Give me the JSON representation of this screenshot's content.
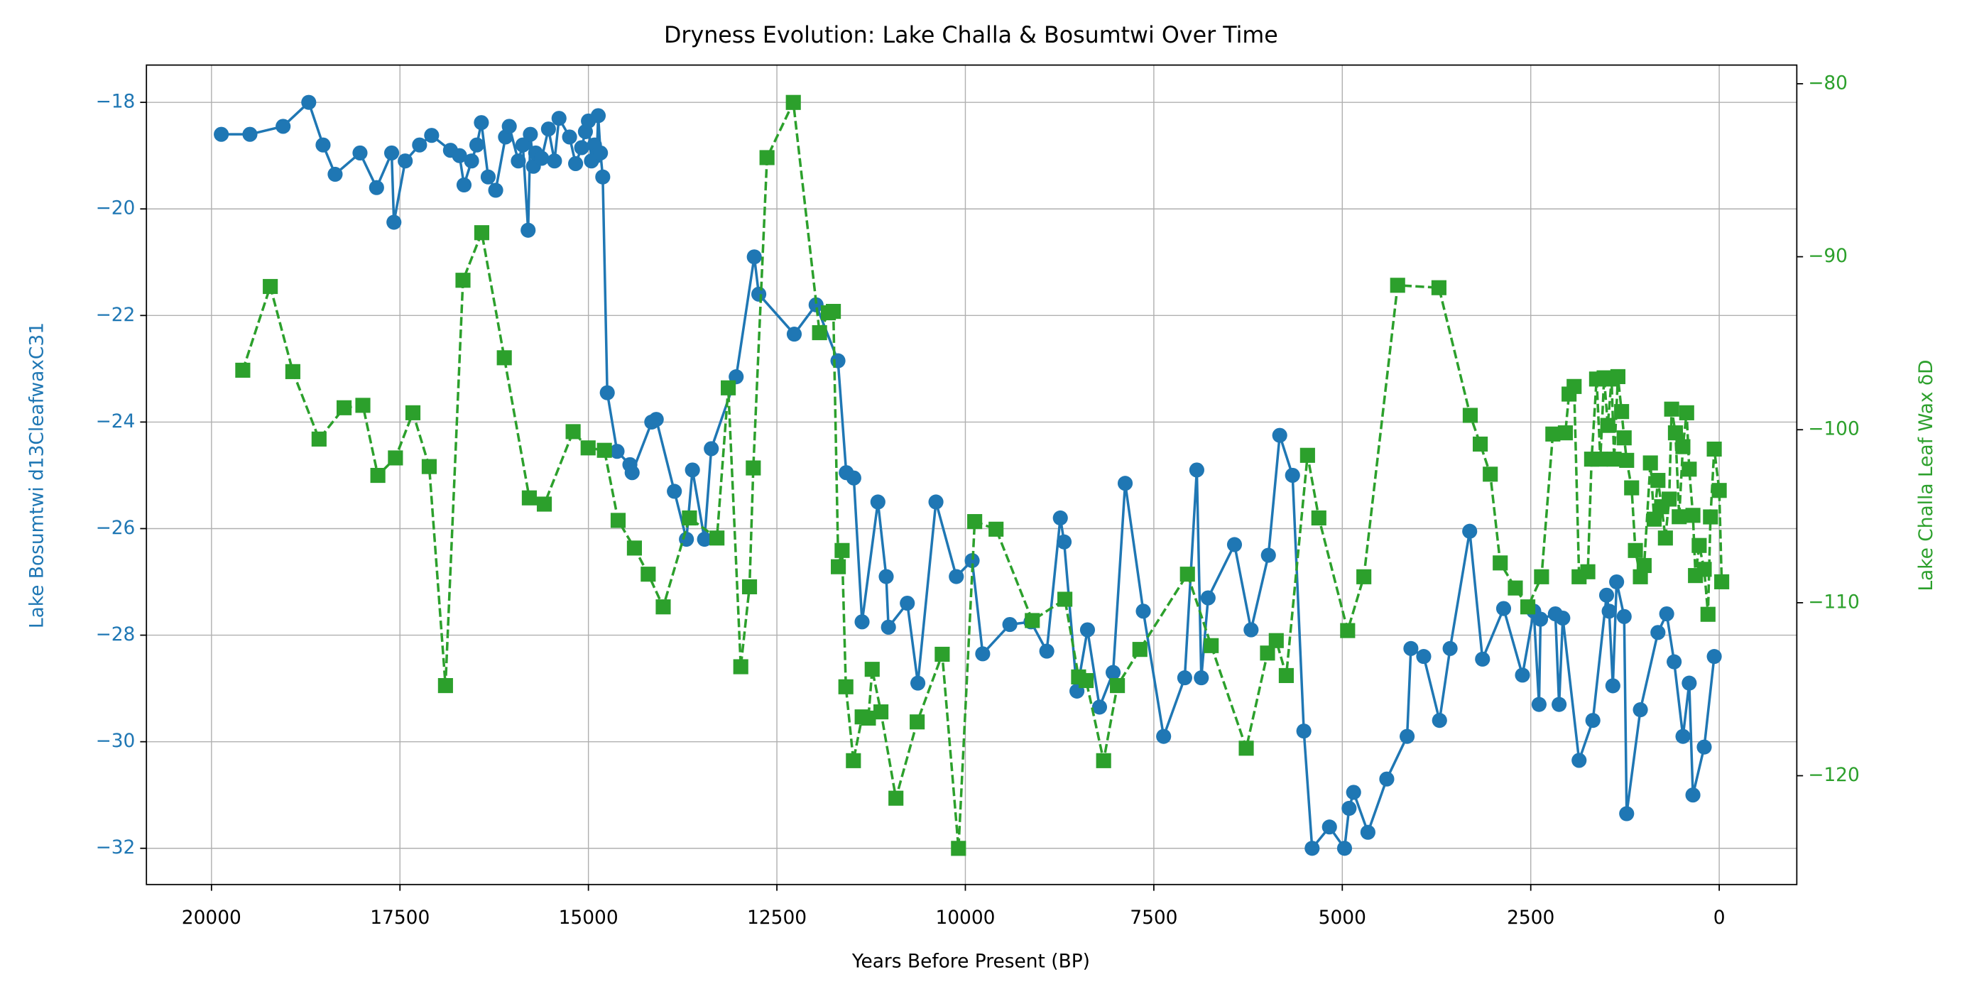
{
  "chart_data": {
    "type": "line",
    "title": "Dryness Evolution: Lake Challa & Bosumtwi Over Time",
    "xlabel": "Years Before Present (BP)",
    "ylabel": "Lake Bosumtwi d13CleafwaxC31",
    "y2label": "Lake Challa Leaf Wax δD",
    "xlim": [
      20863,
      -1029
    ],
    "xticks": [
      20000,
      17500,
      15000,
      12500,
      10000,
      7500,
      5000,
      2500,
      0
    ],
    "ylim": [
      -32.68,
      -17.3
    ],
    "yticks": [
      {
        "value": -18,
        "label": "−18"
      },
      {
        "value": -20,
        "label": "−20"
      },
      {
        "value": -22,
        "label": "−22"
      },
      {
        "value": -24,
        "label": "−24"
      },
      {
        "value": -26,
        "label": "−26"
      },
      {
        "value": -28,
        "label": "−28"
      },
      {
        "value": -30,
        "label": "−30"
      },
      {
        "value": -32,
        "label": "−32"
      }
    ],
    "y2lim": [
      -126.29,
      -78.92
    ],
    "y2ticks": [
      {
        "value": -80,
        "label": "−80"
      },
      {
        "value": -90,
        "label": "−90"
      },
      {
        "value": -100,
        "label": "−100"
      },
      {
        "value": -110,
        "label": "−110"
      },
      {
        "value": -120,
        "label": "−120"
      }
    ],
    "grid": true,
    "series": [
      {
        "color": "#1f77b4",
        "marker": "circle",
        "linestyle": "solid",
        "axis": "y",
        "x": [
          19870,
          19490,
          19050,
          18710,
          18520,
          18360,
          18030,
          17810,
          17610,
          17580,
          17430,
          17240,
          17080,
          16830,
          16710,
          16650,
          16550,
          16480,
          16420,
          16330,
          16230,
          16100,
          16050,
          15930,
          15870,
          15800,
          15770,
          15730,
          15700,
          15620,
          15530,
          15450,
          15390,
          15250,
          15170,
          15090,
          15040,
          15000,
          14960,
          14920,
          14890,
          14870,
          14840,
          14810,
          14750,
          14620,
          14450,
          14420,
          14160,
          14100,
          13860,
          13700,
          13620,
          13460,
          13370,
          13040,
          12800,
          12740,
          12270,
          11980,
          11690,
          11580,
          11480,
          11370,
          11160,
          11050,
          11020,
          10770,
          10630,
          10390,
          10120,
          9910,
          9770,
          9410,
          9130,
          8920,
          8740,
          8690,
          8520,
          8380,
          8220,
          8040,
          7880,
          7640,
          7370,
          7090,
          6930,
          6870,
          6780,
          6430,
          6210,
          5980,
          5830,
          5660,
          5510,
          5400,
          5170,
          4970,
          4910,
          4850,
          4660,
          4410,
          4140,
          4090,
          3920,
          3710,
          3570,
          3310,
          3140,
          2860,
          2610,
          2460,
          2390,
          2370,
          2174,
          2124,
          2075,
          1859,
          1676,
          1494,
          1460,
          1411,
          1361,
          1261,
          1228,
          1046,
          813,
          697,
          598,
          481,
          398,
          349,
          199,
          66
        ],
        "values": [
          -18.6,
          -18.6,
          -18.45,
          -18.0,
          -18.8,
          -19.35,
          -18.95,
          -19.6,
          -18.95,
          -20.25,
          -19.1,
          -18.8,
          -18.62,
          -18.9,
          -19.0,
          -19.55,
          -19.1,
          -18.8,
          -18.38,
          -19.4,
          -19.65,
          -18.65,
          -18.45,
          -19.1,
          -18.8,
          -20.4,
          -18.6,
          -19.2,
          -18.95,
          -19.05,
          -18.5,
          -19.1,
          -18.3,
          -18.65,
          -19.15,
          -18.85,
          -18.55,
          -18.35,
          -19.1,
          -18.8,
          -19.0,
          -18.25,
          -18.95,
          -19.4,
          -23.45,
          -24.55,
          -24.8,
          -24.95,
          -24.0,
          -23.95,
          -25.3,
          -26.2,
          -24.9,
          -26.2,
          -24.5,
          -23.15,
          -20.9,
          -21.6,
          -22.35,
          -21.8,
          -22.85,
          -24.95,
          -25.05,
          -27.75,
          -25.5,
          -26.9,
          -27.85,
          -27.4,
          -28.9,
          -25.5,
          -26.9,
          -26.6,
          -28.35,
          -27.8,
          -27.75,
          -28.3,
          -25.8,
          -26.25,
          -29.05,
          -27.9,
          -29.35,
          -28.7,
          -25.15,
          -27.55,
          -29.9,
          -28.8,
          -24.9,
          -28.8,
          -27.3,
          -26.3,
          -27.9,
          -26.5,
          -24.25,
          -25.0,
          -29.8,
          -32.0,
          -31.6,
          -32.0,
          -31.25,
          -30.95,
          -31.7,
          -30.7,
          -29.9,
          -28.25,
          -28.4,
          -29.6,
          -28.25,
          -26.05,
          -28.45,
          -27.5,
          -28.75,
          -27.55,
          -29.3,
          -27.7,
          -27.6,
          -29.3,
          -27.68,
          -30.35,
          -29.6,
          -27.25,
          -27.55,
          -28.95,
          -27.0,
          -27.65,
          -31.35,
          -29.4,
          -27.95,
          -27.6,
          -28.5,
          -29.9,
          -28.9,
          -31.0,
          -30.1,
          -28.4
        ]
      },
      {
        "color": "#2ca02c",
        "marker": "square",
        "linestyle": "dashed",
        "axis": "y2",
        "x": [
          19585,
          19220,
          18921,
          18573,
          18241,
          17992,
          17793,
          17560,
          17328,
          17112,
          16896,
          16664,
          16415,
          16116,
          15784,
          15585,
          15203,
          15004,
          14788,
          14606,
          14390,
          14207,
          14008,
          13660,
          13295,
          13145,
          12979,
          12863,
          12813,
          12631,
          12282,
          11934,
          11817,
          11751,
          11685,
          11635,
          11585,
          11485,
          11369,
          11286,
          11236,
          11120,
          10921,
          10639,
          10307,
          10091,
          9876,
          9593,
          9112,
          8680,
          8498,
          8398,
          8166,
          7983,
          7685,
          7054,
          6739,
          6274,
          5992,
          5876,
          5743,
          5461,
          5311,
          4929,
          4714,
          4266,
          3718,
          3303,
          3170,
          3037,
          2905,
          2705,
          2539,
          2357,
          2207,
          2041,
          1992,
          1925,
          1859,
          1743,
          1693,
          1627,
          1577,
          1527,
          1478,
          1428,
          1394,
          1344,
          1295,
          1261,
          1228,
          1162,
          1112,
          1046,
          996,
          913,
          863,
          813,
          764,
          714,
          664,
          631,
          581,
          531,
          482,
          432,
          398,
          349,
          315,
          266,
          199,
          149,
          116,
          66,
          0,
          -33
        ],
        "values": [
          -96.56,
          -91.72,
          -96.64,
          -100.54,
          -98.73,
          -98.59,
          -102.64,
          -101.63,
          -99.02,
          -102.13,
          -114.79,
          -91.36,
          -88.61,
          -95.84,
          -103.94,
          -104.3,
          -100.11,
          -101.05,
          -101.19,
          -105.24,
          -106.84,
          -108.35,
          -110.24,
          -105.1,
          -106.26,
          -97.58,
          -113.7,
          -109.08,
          -102.21,
          -84.27,
          -81.08,
          -94.39,
          -93.24,
          -93.16,
          -107.92,
          -106.98,
          -114.86,
          -119.13,
          -116.6,
          -116.67,
          -113.85,
          -116.31,
          -121.3,
          -116.89,
          -112.98,
          -124.2,
          -105.31,
          -105.75,
          -111.03,
          -109.8,
          -114.29,
          -114.5,
          -119.13,
          -114.79,
          -112.7,
          -108.35,
          -112.48,
          -118.41,
          -112.91,
          -112.19,
          -114.21,
          -101.48,
          -105.1,
          -111.61,
          -108.5,
          -91.65,
          -91.79,
          -99.17,
          -100.83,
          -102.57,
          -107.7,
          -109.15,
          -110.24,
          -108.5,
          -100.25,
          -100.18,
          -97.94,
          -97.5,
          -108.5,
          -108.21,
          -101.7,
          -97.07,
          -101.7,
          -97.0,
          -99.75,
          -97.07,
          -101.7,
          -96.93,
          -98.95,
          -100.47,
          -101.77,
          -103.36,
          -106.98,
          -108.5,
          -107.85,
          -101.92,
          -105.17,
          -102.93,
          -104.45,
          -106.26,
          -104.01,
          -98.81,
          -100.18,
          -105.03,
          -100.98,
          -99.02,
          -102.28,
          -104.95,
          -108.43,
          -106.69,
          -108.07,
          -110.67,
          -105.04,
          -101.12,
          -103.51,
          -108.79
        ]
      }
    ]
  }
}
